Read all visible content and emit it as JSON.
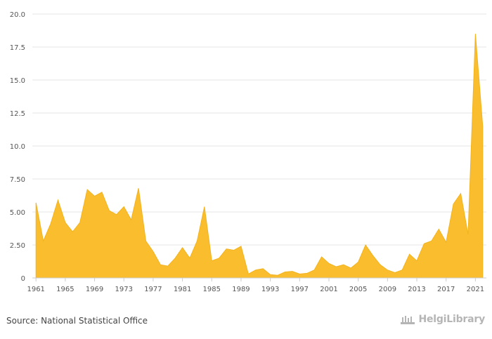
{
  "chart_data": {
    "type": "area",
    "x": [
      1961,
      1962,
      1963,
      1964,
      1965,
      1966,
      1967,
      1968,
      1969,
      1970,
      1971,
      1972,
      1973,
      1974,
      1975,
      1976,
      1977,
      1978,
      1979,
      1980,
      1981,
      1982,
      1983,
      1984,
      1985,
      1986,
      1987,
      1988,
      1989,
      1990,
      1991,
      1992,
      1993,
      1994,
      1995,
      1996,
      1997,
      1998,
      1999,
      2000,
      2001,
      2002,
      2003,
      2004,
      2005,
      2006,
      2007,
      2008,
      2009,
      2010,
      2011,
      2012,
      2013,
      2014,
      2015,
      2016,
      2017,
      2018,
      2019,
      2020,
      2021,
      2022
    ],
    "values": [
      5.7,
      2.8,
      4.1,
      5.9,
      4.2,
      3.5,
      4.2,
      6.7,
      6.2,
      6.5,
      5.1,
      4.8,
      5.4,
      4.4,
      6.8,
      2.8,
      2.0,
      1.0,
      0.9,
      1.5,
      2.3,
      1.5,
      2.8,
      5.4,
      1.3,
      1.5,
      2.2,
      2.1,
      2.4,
      0.3,
      0.6,
      0.7,
      0.25,
      0.2,
      0.45,
      0.5,
      0.3,
      0.35,
      0.6,
      1.6,
      1.1,
      0.85,
      1.0,
      0.75,
      1.2,
      2.5,
      1.7,
      1.0,
      0.6,
      0.4,
      0.6,
      1.8,
      1.3,
      2.6,
      2.8,
      3.7,
      2.7,
      5.6,
      6.4,
      3.3,
      18.5,
      11.5
    ],
    "x_tick_labels": [
      "1961",
      "1965",
      "1969",
      "1973",
      "1977",
      "1981",
      "1985",
      "1989",
      "1993",
      "1997",
      "2001",
      "2005",
      "2009",
      "2013",
      "2017",
      "2021"
    ],
    "x_tick_values": [
      1961,
      1965,
      1969,
      1973,
      1977,
      1981,
      1985,
      1989,
      1993,
      1997,
      2001,
      2005,
      2009,
      2013,
      2017,
      2021
    ],
    "y_tick_labels": [
      "0",
      "2.50",
      "5.00",
      "7.50",
      "10.0",
      "12.5",
      "15.0",
      "17.5",
      "20.0"
    ],
    "y_tick_values": [
      0,
      2.5,
      5,
      7.5,
      10,
      12.5,
      15,
      17.5,
      20
    ],
    "ylim": [
      0,
      20
    ],
    "xlim": [
      1960.5,
      2022.5
    ],
    "grid": true,
    "fill_color": "#f9bd2e",
    "stroke_color": "#f2b31e"
  },
  "footer": {
    "source": "Source: National Statistical Office",
    "brand": "HelgiLibrary"
  }
}
